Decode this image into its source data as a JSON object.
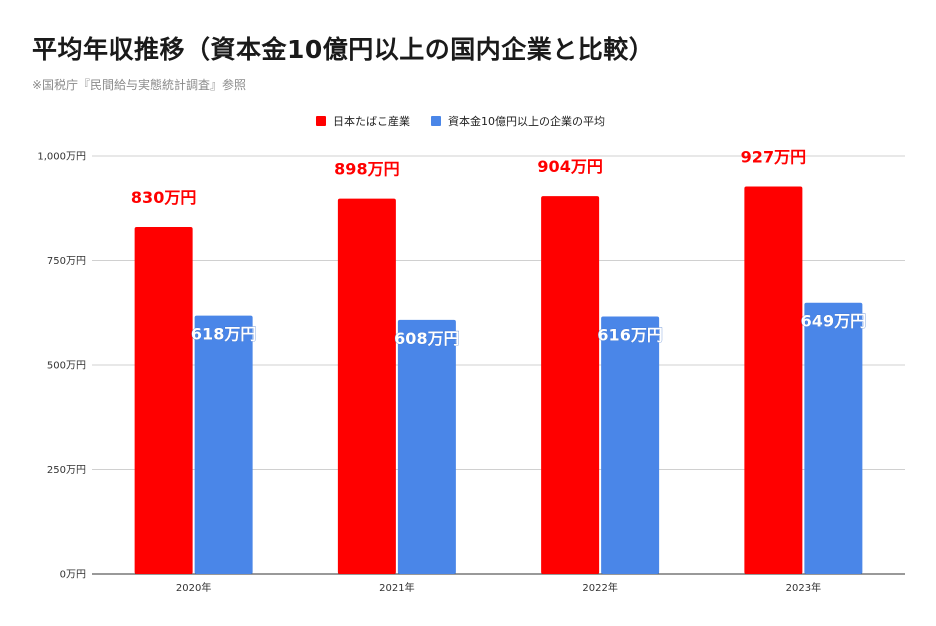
{
  "title": "平均年収推移（資本金10億円以上の国内企業と比較）",
  "source": "※国税庁『民間給与実態統計調査』参照",
  "chart_data": {
    "type": "bar",
    "categories": [
      "2020年",
      "2021年",
      "2022年",
      "2023年"
    ],
    "series": [
      {
        "name": "日本たばこ産業",
        "color": "#ff0000",
        "values": [
          830,
          898,
          904,
          927
        ],
        "labels": [
          "830万円",
          "898万円",
          "904万円",
          "927万円"
        ]
      },
      {
        "name": "資本金10億円以上の企業の平均",
        "color": "#4a86e8",
        "values": [
          618,
          608,
          616,
          649
        ],
        "labels": [
          "618万円",
          "608万円",
          "616万円",
          "649万円"
        ]
      }
    ],
    "ylim": [
      0,
      1000
    ],
    "yticks": [
      0,
      250,
      500,
      750,
      1000
    ],
    "ytick_labels": [
      "0万円",
      "250万円",
      "500万円",
      "750万円",
      "1,000万円"
    ],
    "grid": true,
    "legend_position": "top-center"
  }
}
